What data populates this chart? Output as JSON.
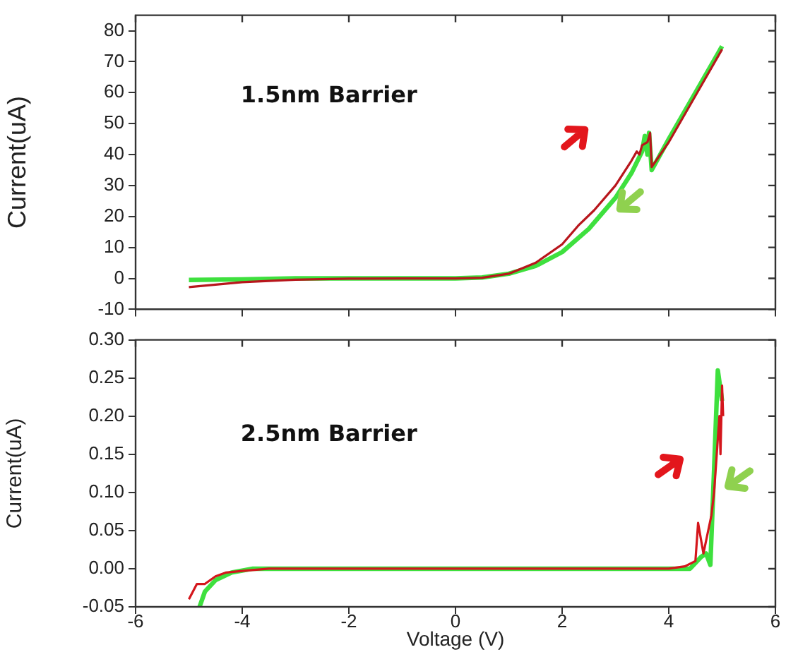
{
  "chart_data": [
    {
      "type": "line",
      "ylabel": "Current(uA)",
      "annotations": [
        "1.5nm Barrier"
      ],
      "xlim": [
        -6,
        6
      ],
      "xticks": [
        -6,
        -4,
        -2,
        0,
        2,
        4,
        6
      ],
      "ylim": [
        -10,
        85
      ],
      "yticks": [
        -10,
        0,
        10,
        20,
        30,
        40,
        50,
        60,
        70,
        80
      ],
      "tick_labels": "y",
      "marker": "none",
      "line_style": "solid",
      "series": [
        {
          "color": "#b8161c",
          "x": [
            -5,
            -4.5,
            -4,
            -3,
            -2,
            -1,
            0,
            0.5,
            1,
            1.5,
            2,
            2.3,
            2.6,
            3,
            3.3,
            3.4,
            3.45,
            3.5,
            3.6,
            3.65,
            3.68,
            4,
            4.5,
            5
          ],
          "values": [
            -2.8,
            -2,
            -1.2,
            -0.4,
            -0.1,
            0,
            0,
            0.2,
            1.5,
            5,
            11,
            17,
            22,
            30,
            38,
            41,
            40,
            43,
            44,
            47,
            36,
            44,
            59,
            74
          ]
        },
        {
          "color": "#3ee03e",
          "x": [
            -5,
            -4,
            -3,
            0,
            0.5,
            1,
            1.5,
            2,
            2.5,
            3,
            3.3,
            3.5,
            3.55,
            3.6,
            3.63,
            3.68,
            4,
            4.5,
            5
          ],
          "values": [
            -0.5,
            -0.3,
            0,
            0,
            0.3,
            1.5,
            4,
            8.5,
            16,
            26,
            34,
            41,
            46,
            40,
            47,
            35,
            45,
            60,
            75
          ]
        }
      ]
    },
    {
      "type": "line",
      "ylabel": "Current(uA)",
      "xlabel": "Voltage (V)",
      "annotations": [
        "2.5nm Barrier"
      ],
      "xlim": [
        -6,
        6
      ],
      "xticks": [
        -6,
        -4,
        -2,
        0,
        2,
        4,
        6
      ],
      "ylim": [
        -0.05,
        0.3
      ],
      "yticks": [
        {
          "value": -0.05,
          "label": "-0.05"
        },
        {
          "value": 0,
          "label": "0.00"
        },
        {
          "value": 0.05,
          "label": "0.05"
        },
        {
          "value": 0.1,
          "label": "0.10"
        },
        {
          "value": 0.15,
          "label": "0.15"
        },
        {
          "value": 0.2,
          "label": "0.20"
        },
        {
          "value": 0.25,
          "label": "0.25"
        },
        {
          "value": 0.3,
          "label": "0.30"
        }
      ],
      "marker": "none",
      "line_style": "solid",
      "series": [
        {
          "color": "#d4161c",
          "x": [
            -5,
            -4.85,
            -4.7,
            -4.5,
            -4.3,
            -4,
            -3.5,
            4,
            4.3,
            4.5,
            4.55,
            4.65,
            4.8,
            4.85,
            4.9,
            4.95,
            4.97,
            5,
            5.02
          ],
          "values": [
            -0.04,
            -0.02,
            -0.02,
            -0.01,
            -0.005,
            -0.003,
            0,
            0,
            0.003,
            0.01,
            0.06,
            0.02,
            0.07,
            0.1,
            0.15,
            0.2,
            0.15,
            0.24,
            0.2
          ]
        },
        {
          "color": "#3ee03e",
          "x": [
            -4.8,
            -4.7,
            -4.5,
            -4.2,
            -3.8,
            4.4,
            4.6,
            4.7,
            4.78,
            4.85,
            4.92,
            5
          ],
          "values": [
            -0.05,
            -0.03,
            -0.015,
            -0.005,
            0,
            0,
            0.015,
            0.02,
            0.005,
            0.13,
            0.26,
            0.22
          ]
        }
      ]
    }
  ]
}
